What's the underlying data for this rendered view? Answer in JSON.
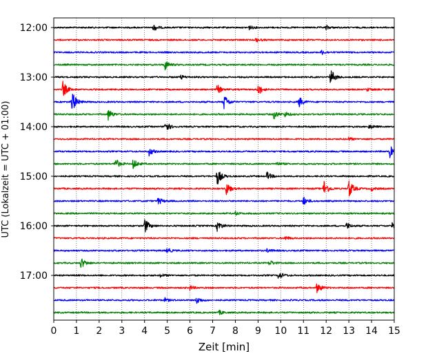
{
  "chart_data": {
    "type": "line",
    "title": "",
    "xlabel": "Zeit  [min]",
    "ylabel": "UTC (Lokalzeit = UTC + 01:00)",
    "xlim": [
      0,
      15
    ],
    "x_ticks": [
      "0",
      "1",
      "2",
      "3",
      "4",
      "5",
      "6",
      "7",
      "8",
      "9",
      "10",
      "11",
      "12",
      "13",
      "14",
      "15"
    ],
    "y_tick_labels": [
      "12:00",
      "13:00",
      "14:00",
      "15:00",
      "16:00",
      "17:00"
    ],
    "grid": "vertical dotted",
    "trace_interval_min": 15,
    "series_colors": [
      "#000000",
      "#ff0000",
      "#0000ff",
      "#008000"
    ],
    "traces": [
      {
        "start": "12:00",
        "color": "#000000",
        "events": [
          {
            "t": 4.4,
            "a": 1.0
          },
          {
            "t": 8.6,
            "a": 0.6
          },
          {
            "t": 12.0,
            "a": 0.6
          }
        ]
      },
      {
        "start": "12:15",
        "color": "#ff0000",
        "events": [
          {
            "t": 8.9,
            "a": 0.6
          }
        ]
      },
      {
        "start": "12:30",
        "color": "#0000ff",
        "events": [
          {
            "t": 11.8,
            "a": 0.6
          }
        ]
      },
      {
        "start": "12:45",
        "color": "#008000",
        "events": [
          {
            "t": 4.9,
            "a": 1.5
          }
        ]
      },
      {
        "start": "13:00",
        "color": "#000000",
        "events": [
          {
            "t": 12.2,
            "a": 2.4
          },
          {
            "t": 5.6,
            "a": 0.6
          }
        ]
      },
      {
        "start": "13:15",
        "color": "#ff0000",
        "events": [
          {
            "t": 0.4,
            "a": 2.5
          },
          {
            "t": 7.2,
            "a": 1.4
          },
          {
            "t": 9.0,
            "a": 1.8
          },
          {
            "t": 13.8,
            "a": 0.5
          }
        ]
      },
      {
        "start": "13:30",
        "color": "#0000ff",
        "events": [
          {
            "t": 0.8,
            "a": 3.5
          },
          {
            "t": 7.5,
            "a": 2.2
          },
          {
            "t": 10.8,
            "a": 1.6
          }
        ]
      },
      {
        "start": "13:45",
        "color": "#008000",
        "events": [
          {
            "t": 2.4,
            "a": 1.6
          },
          {
            "t": 9.7,
            "a": 1.4
          },
          {
            "t": 10.2,
            "a": 0.7
          }
        ]
      },
      {
        "start": "14:00",
        "color": "#000000",
        "events": [
          {
            "t": 4.9,
            "a": 1.8
          },
          {
            "t": 13.9,
            "a": 0.6
          }
        ]
      },
      {
        "start": "14:15",
        "color": "#ff0000",
        "events": [
          {
            "t": 13.0,
            "a": 0.5
          }
        ]
      },
      {
        "start": "14:30",
        "color": "#0000ff",
        "events": [
          {
            "t": 4.2,
            "a": 1.2
          },
          {
            "t": 14.8,
            "a": 1.8
          }
        ]
      },
      {
        "start": "14:45",
        "color": "#008000",
        "events": [
          {
            "t": 2.7,
            "a": 1.8
          },
          {
            "t": 3.5,
            "a": 1.6
          },
          {
            "t": 9.8,
            "a": 0.6
          }
        ]
      },
      {
        "start": "15:00",
        "color": "#000000",
        "events": [
          {
            "t": 7.2,
            "a": 2.6
          },
          {
            "t": 9.4,
            "a": 1.2
          }
        ]
      },
      {
        "start": "15:15",
        "color": "#ff0000",
        "events": [
          {
            "t": 7.6,
            "a": 2.0
          },
          {
            "t": 11.9,
            "a": 2.6
          },
          {
            "t": 13.0,
            "a": 2.8
          },
          {
            "t": 14.0,
            "a": 0.6
          }
        ]
      },
      {
        "start": "15:30",
        "color": "#0000ff",
        "events": [
          {
            "t": 4.6,
            "a": 1.1
          },
          {
            "t": 11.0,
            "a": 1.2
          }
        ]
      },
      {
        "start": "15:45",
        "color": "#008000",
        "events": [
          {
            "t": 8.0,
            "a": 0.5
          }
        ]
      },
      {
        "start": "16:00",
        "color": "#000000",
        "events": [
          {
            "t": 4.0,
            "a": 2.3
          },
          {
            "t": 7.2,
            "a": 1.6
          },
          {
            "t": 12.9,
            "a": 1.0
          },
          {
            "t": 14.9,
            "a": 0.8
          }
        ]
      },
      {
        "start": "16:15",
        "color": "#ff0000",
        "events": [
          {
            "t": 10.2,
            "a": 0.6
          }
        ]
      },
      {
        "start": "16:30",
        "color": "#0000ff",
        "events": [
          {
            "t": 5.0,
            "a": 0.8
          },
          {
            "t": 9.4,
            "a": 0.6
          }
        ]
      },
      {
        "start": "16:45",
        "color": "#008000",
        "events": [
          {
            "t": 1.2,
            "a": 1.6
          },
          {
            "t": 9.5,
            "a": 0.8
          }
        ]
      },
      {
        "start": "17:00",
        "color": "#000000",
        "events": [
          {
            "t": 9.9,
            "a": 1.2
          },
          {
            "t": 4.7,
            "a": 0.5
          }
        ]
      },
      {
        "start": "17:15",
        "color": "#ff0000",
        "events": [
          {
            "t": 11.6,
            "a": 1.6
          },
          {
            "t": 6.0,
            "a": 0.6
          }
        ]
      },
      {
        "start": "17:30",
        "color": "#0000ff",
        "events": [
          {
            "t": 6.3,
            "a": 1.0
          },
          {
            "t": 4.9,
            "a": 0.6
          }
        ]
      },
      {
        "start": "17:45",
        "color": "#008000",
        "events": [
          {
            "t": 7.3,
            "a": 0.6
          }
        ]
      }
    ]
  }
}
